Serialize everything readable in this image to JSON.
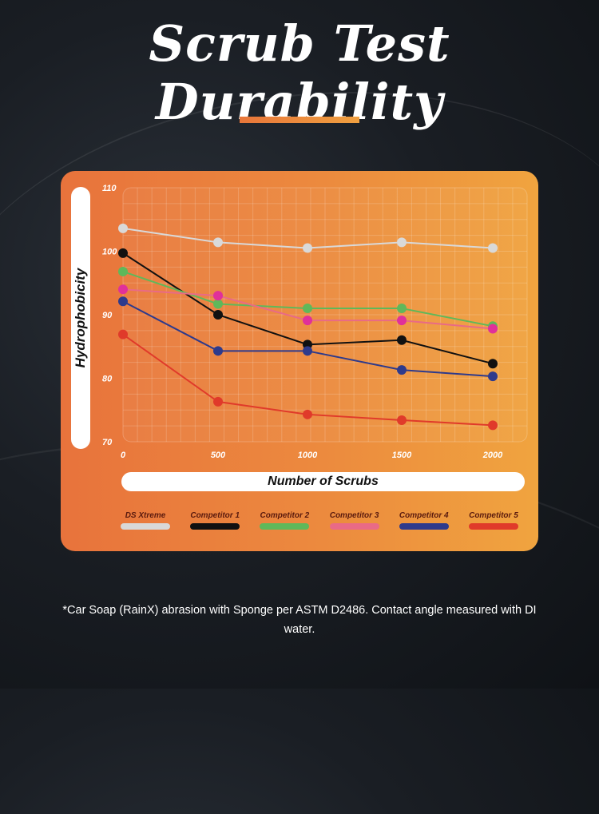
{
  "title": "Scrub Test Durability",
  "footnote": "*Car Soap (RainX) abrasion with Sponge per ASTM D2486. Contact angle measured with DI water.",
  "chart_data": {
    "type": "line",
    "title": "",
    "xlabel": "Number of Scrubs",
    "ylabel": "Hydrophobicity",
    "x": [
      0,
      500,
      1000,
      1500,
      2000
    ],
    "xticks": [
      "0",
      "500",
      "1000",
      "1500",
      "2000"
    ],
    "yticks": [
      "110",
      "100",
      "90",
      "80",
      "70"
    ],
    "ylim": [
      70,
      110
    ],
    "grid": true,
    "legend_position": "bottom",
    "series": [
      {
        "name": "DS Xtreme",
        "color": "#d9d9d9",
        "values": [
          103.6,
          101.4,
          100.5,
          101.4,
          100.5
        ]
      },
      {
        "name": "Competitor 1",
        "color": "#111111",
        "values": [
          99.7,
          90.0,
          85.3,
          86.0,
          82.3
        ]
      },
      {
        "name": "Competitor 2",
        "color": "#5fb85a",
        "values": [
          96.8,
          91.7,
          91.0,
          91.0,
          88.2
        ]
      },
      {
        "name": "Competitor 3",
        "color": "#e96a86",
        "values": [
          94.0,
          93.0,
          89.1,
          89.1,
          87.8
        ]
      },
      {
        "name": "Competitor 4",
        "color": "#2e3a8c",
        "values": [
          92.1,
          84.3,
          84.3,
          81.3,
          80.3
        ]
      },
      {
        "name": "Competitor 5",
        "color": "#e03a2a",
        "values": [
          86.9,
          76.3,
          74.3,
          73.4,
          72.6
        ]
      }
    ],
    "marker_colors": {
      "Competitor 3": "#e0309a"
    }
  }
}
